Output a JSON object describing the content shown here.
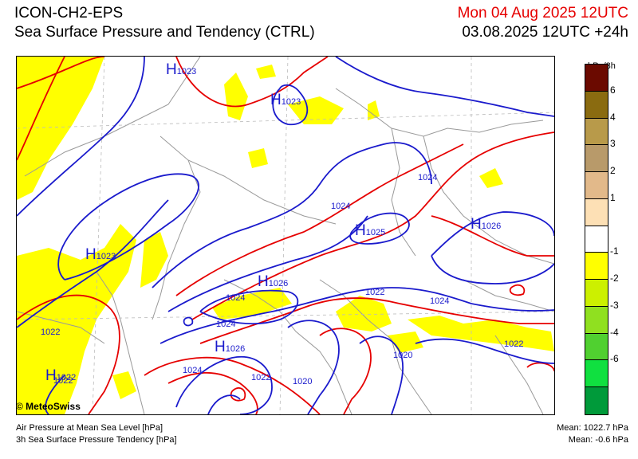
{
  "header": {
    "model": "ICON-CH2-EPS",
    "product": "Sea Surface Pressure and Tendency (CTRL)",
    "valid_date": "Mon 04 Aug 2025 12UTC",
    "run_info": "03.08.2025 12UTC +24h"
  },
  "colorbar": {
    "unit": "hPa/3h",
    "colors": [
      "#6b0a00",
      "#8a6b10",
      "#b89a4a",
      "#b89a6a",
      "#e2b98a",
      "#fde0b5",
      "#ffffff",
      "#ffff00",
      "#ccf000",
      "#90e020",
      "#50d030",
      "#10e040",
      "#009a3a"
    ],
    "ticks": [
      "6",
      "4",
      "3",
      "2",
      "1",
      "-1",
      "-2",
      "-3",
      "-4",
      "-6"
    ]
  },
  "map": {
    "high_symbol": "H",
    "highs": [
      {
        "value": "1023"
      },
      {
        "value": "1023"
      },
      {
        "value": "1025"
      },
      {
        "value": "1026"
      },
      {
        "value": "1023"
      },
      {
        "value": "1026"
      },
      {
        "value": "1026"
      },
      {
        "value": "1022"
      }
    ],
    "isobar_labels": [
      "1024",
      "1024",
      "1022",
      "1024",
      "1024",
      "1024",
      "1022",
      "1022",
      "1020",
      "1020",
      "1022",
      "1024",
      "1022"
    ],
    "colors": {
      "isobar_blue": "#1a1acc",
      "isobar_red": "#e60000",
      "tendency_yellow": "#ffff00",
      "border": "#999999"
    }
  },
  "footer": {
    "copyright": "© MeteoSwiss",
    "legend_line1": "Air Pressure at Mean Sea Level [hPa]",
    "legend_line2": "3h Sea Surface Pressure Tendency [hPa]",
    "mean_pressure": "Mean: 1022.7 hPa",
    "mean_tendency": "Mean:   -0.6 hPa"
  }
}
